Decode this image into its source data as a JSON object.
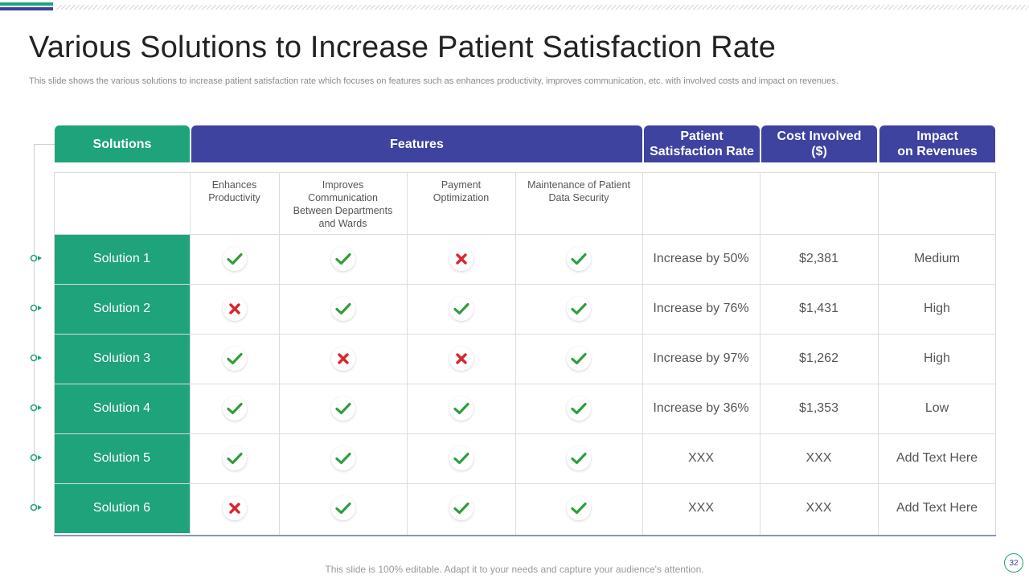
{
  "title": "Various Solutions to Increase Patient Satisfaction Rate",
  "subtitle": "This slide shows the various solutions to increase patient satisfaction rate which focuses on features such as enhances productivity, improves communication, etc. with involved costs and impact on revenues.",
  "headers": {
    "solutions": "Solutions",
    "features": "Features",
    "satisfaction_line1": "Patient",
    "satisfaction_line2": "Satisfaction Rate",
    "cost_line1": "Cost Involved",
    "cost_line2": "($)",
    "impact_line1": "Impact",
    "impact_line2": "on Revenues"
  },
  "features": [
    [
      "Enhances",
      "Productivity"
    ],
    [
      "Improves",
      "Communication",
      "Between Departments",
      "and Wards"
    ],
    [
      "Payment",
      "Optimization"
    ],
    [
      "Maintenance of Patient",
      "Data Security"
    ]
  ],
  "rows": [
    {
      "name": "Solution 1",
      "marks": [
        true,
        true,
        false,
        true
      ],
      "satisfaction": "Increase by 50%",
      "cost": "$2,381",
      "impact": "Medium"
    },
    {
      "name": "Solution 2",
      "marks": [
        false,
        true,
        true,
        true
      ],
      "satisfaction": "Increase by 76%",
      "cost": "$1,431",
      "impact": "High"
    },
    {
      "name": "Solution 3",
      "marks": [
        true,
        false,
        false,
        true
      ],
      "satisfaction": "Increase by 97%",
      "cost": "$1,262",
      "impact": "High"
    },
    {
      "name": "Solution 4",
      "marks": [
        true,
        true,
        true,
        true
      ],
      "satisfaction": "Increase by 36%",
      "cost": "$1,353",
      "impact": "Low"
    },
    {
      "name": "Solution 5",
      "marks": [
        true,
        true,
        true,
        true
      ],
      "satisfaction": "XXX",
      "cost": "XXX",
      "impact": "Add Text Here"
    },
    {
      "name": "Solution 6",
      "marks": [
        false,
        true,
        true,
        true
      ],
      "satisfaction": "XXX",
      "cost": "XXX",
      "impact": "Add Text Here"
    }
  ],
  "icons": {
    "yes": "check-icon",
    "no": "cross-icon"
  },
  "colors": {
    "green": "#1fa37a",
    "blue": "#3e43a0",
    "check": "#2e9e3e",
    "cross": "#d9262c"
  },
  "footer": "This slide is 100% editable. Adapt it to your needs and capture your audience's attention.",
  "page_number": "32"
}
